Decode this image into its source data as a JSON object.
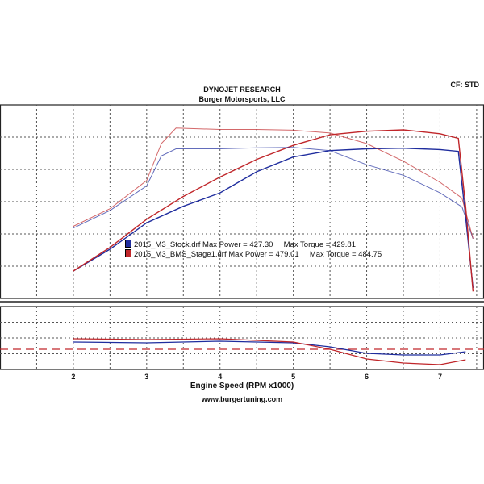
{
  "header": {
    "title": "DYNOJET RESEARCH",
    "subtitle": "Burger Motorsports, LLC",
    "cf": "CF: STD"
  },
  "footer": {
    "url": "www.burgertuning.com"
  },
  "colors": {
    "stock": "#1f2d9e",
    "stage1": "#c0262a",
    "grid": "#555555"
  },
  "chart_data": {
    "type": "line",
    "title": "DYNOJET RESEARCH",
    "xlabel": "Engine Speed (RPM x1000)",
    "ylabel": "",
    "xlim": [
      1.0,
      7.6
    ],
    "ylim": [
      0,
      550
    ],
    "x_ticks": [
      "2",
      "3",
      "4",
      "5",
      "6",
      "7"
    ],
    "grid": true,
    "legend_placement": "center-left",
    "series": [
      {
        "name": "2015_M3_Stock.drf",
        "label": "2015_M3_Stock.drf Max Power = 427.30   Max Torque = 429.81",
        "max_power_label": "Max Power =",
        "max_power": "427.30",
        "max_torque_label": "Max Torque =",
        "max_torque": "429.81",
        "kind": "power",
        "x": [
          2.0,
          2.5,
          3.0,
          3.5,
          4.0,
          4.5,
          5.0,
          5.5,
          6.0,
          6.5,
          7.0,
          7.25,
          7.35,
          7.45
        ],
        "values": [
          78,
          140,
          215,
          262,
          300,
          360,
          402,
          420,
          425,
          427,
          423,
          418,
          230,
          30
        ]
      },
      {
        "name": "2015_M3_BMS_Stage1.drf",
        "label": "2015_M3_BMS_Stage1.drf Max Power = 479.01   Max Torque = 484.75",
        "max_power_label": "Max Power =",
        "max_power": "479.01",
        "max_torque_label": "Max Torque =",
        "max_torque": "484.75",
        "kind": "power",
        "x": [
          2.0,
          2.5,
          3.0,
          3.5,
          4.0,
          4.5,
          5.0,
          5.5,
          6.0,
          6.5,
          7.0,
          7.25,
          7.35,
          7.45
        ],
        "values": [
          78,
          145,
          225,
          290,
          345,
          395,
          435,
          465,
          475,
          479,
          468,
          455,
          260,
          20
        ]
      },
      {
        "name": "2015_M3_Stock.drf",
        "kind": "torque",
        "x": [
          2.0,
          2.5,
          3.0,
          3.2,
          3.4,
          4.0,
          4.5,
          5.0,
          5.5,
          6.0,
          6.5,
          7.0,
          7.3,
          7.45
        ],
        "values": [
          200,
          250,
          320,
          405,
          425,
          425,
          428,
          429,
          420,
          380,
          350,
          300,
          260,
          170
        ]
      },
      {
        "name": "2015_M3_BMS_Stage1.drf",
        "kind": "torque",
        "x": [
          2.0,
          2.5,
          3.0,
          3.2,
          3.4,
          4.0,
          4.5,
          5.0,
          5.5,
          6.0,
          6.5,
          7.0,
          7.3,
          7.45
        ],
        "values": [
          205,
          255,
          335,
          440,
          484,
          480,
          480,
          478,
          470,
          440,
          390,
          330,
          285,
          170
        ]
      }
    ]
  }
}
